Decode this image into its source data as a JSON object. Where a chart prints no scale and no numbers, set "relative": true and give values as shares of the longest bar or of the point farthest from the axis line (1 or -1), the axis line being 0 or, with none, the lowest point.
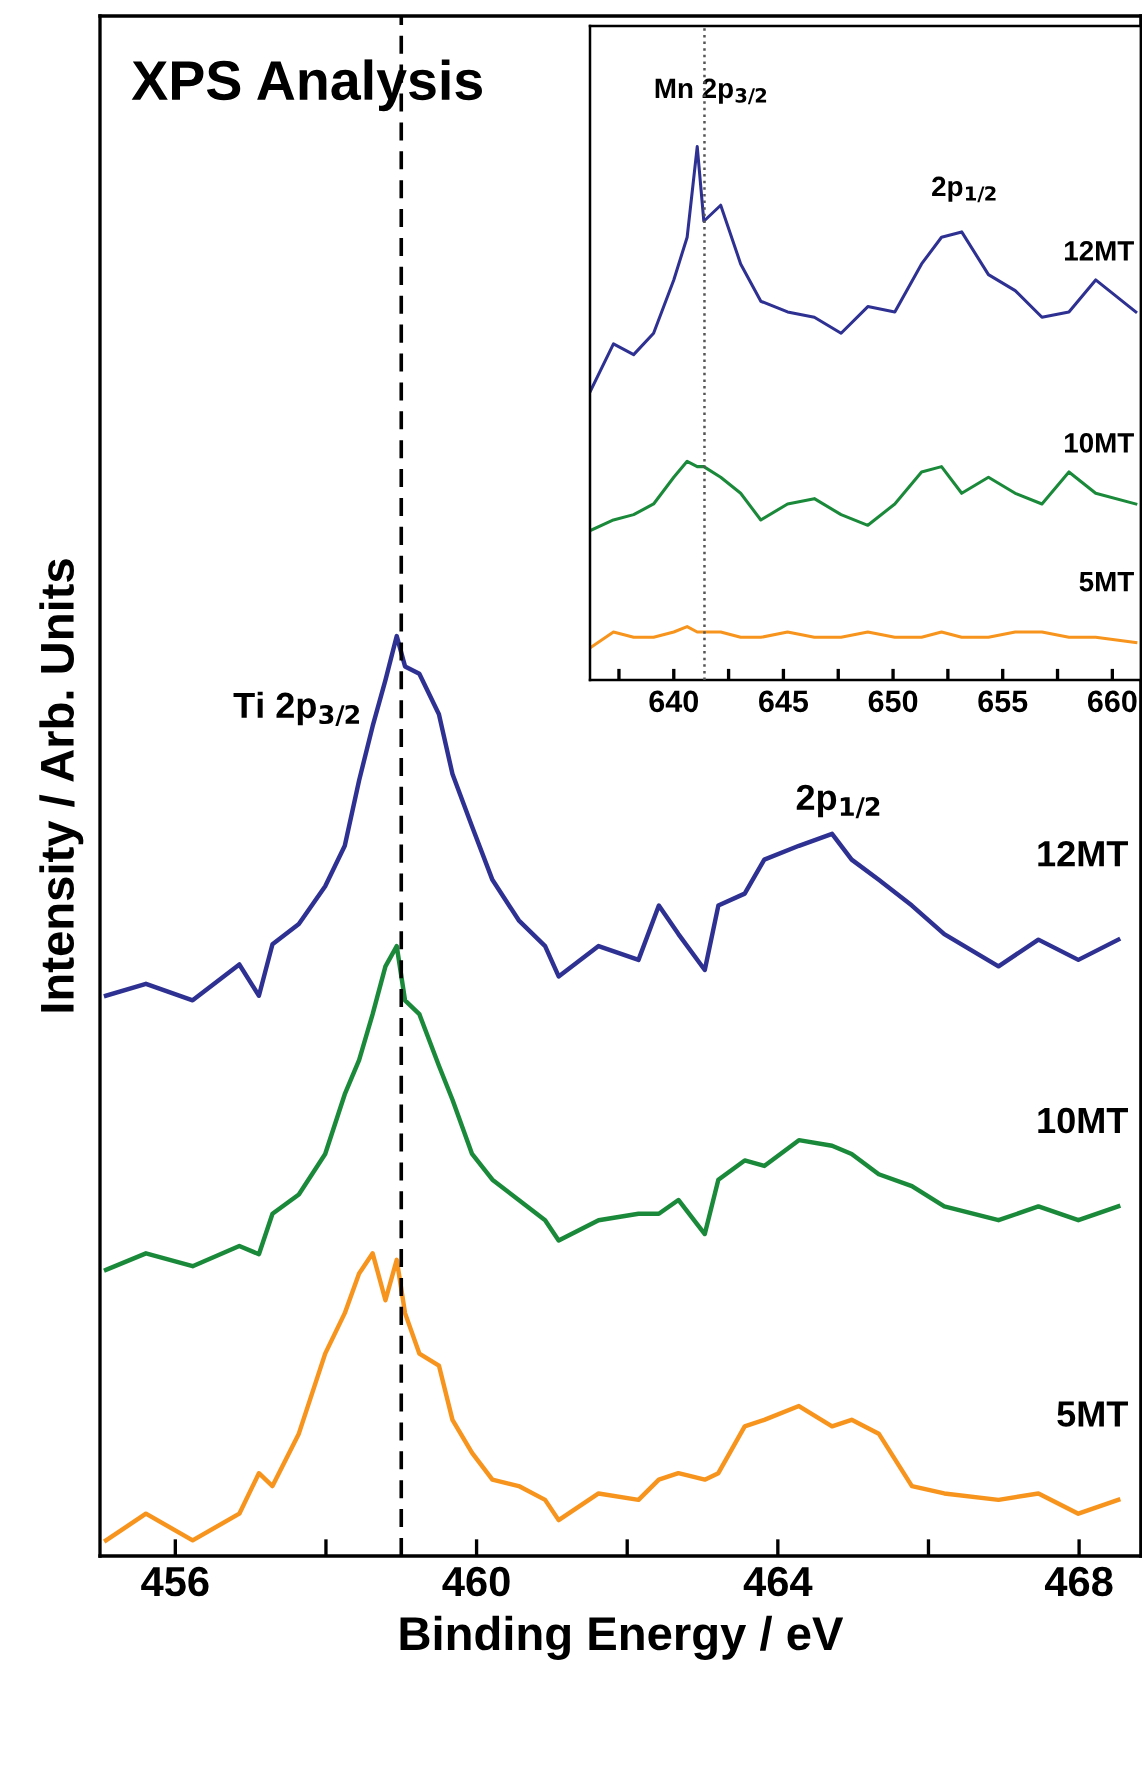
{
  "chart_data": [
    {
      "type": "line",
      "title": "XPS Analysis",
      "xlabel": "Binding Energy / eV",
      "ylabel": "Intensity / Arb. Units",
      "relative": true,
      "x": [
        455.08,
        455.61,
        456.23,
        456.85,
        457.11,
        457.29,
        457.64,
        457.99,
        458.25,
        458.44,
        458.62,
        458.79,
        458.94,
        459.05,
        459.24,
        459.5,
        459.68,
        459.94,
        460.21,
        460.56,
        460.91,
        461.09,
        461.62,
        462.15,
        462.42,
        462.68,
        463.03,
        463.21,
        463.56,
        463.82,
        464.28,
        464.72,
        464.98,
        465.34,
        465.78,
        466.21,
        466.93,
        467.46,
        467.99,
        468.52
      ],
      "series": [
        {
          "name": "12MT",
          "color": "#2e3192",
          "values": [
            0.609,
            0.622,
            0.604,
            0.643,
            0.609,
            0.665,
            0.687,
            0.728,
            0.772,
            0.843,
            0.902,
            0.952,
            1.0,
            0.967,
            0.959,
            0.915,
            0.85,
            0.793,
            0.735,
            0.691,
            0.663,
            0.63,
            0.663,
            0.648,
            0.707,
            0.676,
            0.637,
            0.707,
            0.72,
            0.757,
            0.772,
            0.785,
            0.757,
            0.735,
            0.707,
            0.676,
            0.641,
            0.67,
            0.648,
            0.67
          ]
        },
        {
          "name": "10MT",
          "color": "#1a8a3a",
          "values": [
            0.311,
            0.329,
            0.315,
            0.337,
            0.328,
            0.372,
            0.393,
            0.437,
            0.502,
            0.539,
            0.589,
            0.641,
            0.663,
            0.604,
            0.589,
            0.533,
            0.496,
            0.437,
            0.409,
            0.387,
            0.365,
            0.343,
            0.365,
            0.372,
            0.372,
            0.387,
            0.35,
            0.409,
            0.43,
            0.424,
            0.452,
            0.446,
            0.437,
            0.415,
            0.402,
            0.38,
            0.365,
            0.38,
            0.365,
            0.38
          ]
        },
        {
          "name": "5MT",
          "color": "#f7941d",
          "values": [
            0.017,
            0.046,
            0.017,
            0.046,
            0.09,
            0.076,
            0.133,
            0.22,
            0.264,
            0.307,
            0.329,
            0.278,
            0.322,
            0.264,
            0.22,
            0.207,
            0.148,
            0.112,
            0.083,
            0.076,
            0.061,
            0.039,
            0.068,
            0.061,
            0.083,
            0.09,
            0.083,
            0.09,
            0.141,
            0.148,
            0.163,
            0.141,
            0.148,
            0.133,
            0.076,
            0.068,
            0.061,
            0.068,
            0.046,
            0.061
          ]
        }
      ],
      "xlim": [
        455.0,
        468.82
      ],
      "xticks": [
        456,
        {
          "value": 458,
          "label": null
        },
        460,
        {
          "value": 462,
          "label": null
        },
        464,
        {
          "value": 466,
          "label": null
        },
        468
      ],
      "tick_labels": "x",
      "ref_lines": [
        {
          "axis": "x",
          "value": 459.0,
          "color": "#000000",
          "line_style": "dashed"
        }
      ],
      "annotations": [
        "Ti 2p$_{3/2}$",
        "2p$_{1/2}$"
      ],
      "legend": false,
      "grid": false,
      "marker": "none",
      "line_style": "solid"
    },
    {
      "type": "line",
      "relative": true,
      "x": [
        636.18,
        637.25,
        638.17,
        639.08,
        640.0,
        640.61,
        641.07,
        641.37,
        642.14,
        643.05,
        643.97,
        645.19,
        646.41,
        647.63,
        648.85,
        650.08,
        651.3,
        652.21,
        653.13,
        654.35,
        655.57,
        656.79,
        658.02,
        659.24,
        661.07
      ],
      "series": [
        {
          "name": "12MT",
          "color": "#2e3192",
          "values": [
            0.54,
            0.63,
            0.61,
            0.65,
            0.75,
            0.83,
            1.0,
            0.86,
            0.89,
            0.78,
            0.71,
            0.69,
            0.68,
            0.65,
            0.7,
            0.69,
            0.78,
            0.83,
            0.84,
            0.76,
            0.73,
            0.68,
            0.69,
            0.75,
            0.69
          ]
        },
        {
          "name": "10MT",
          "color": "#1a8a3a",
          "values": [
            0.28,
            0.3,
            0.31,
            0.33,
            0.38,
            0.41,
            0.4,
            0.4,
            0.38,
            0.35,
            0.3,
            0.33,
            0.34,
            0.31,
            0.29,
            0.33,
            0.39,
            0.4,
            0.35,
            0.38,
            0.35,
            0.33,
            0.39,
            0.35,
            0.33
          ]
        },
        {
          "name": "5MT",
          "color": "#f7941d",
          "values": [
            0.06,
            0.09,
            0.08,
            0.08,
            0.09,
            0.1,
            0.09,
            0.09,
            0.09,
            0.08,
            0.08,
            0.09,
            0.08,
            0.08,
            0.09,
            0.08,
            0.08,
            0.09,
            0.08,
            0.08,
            0.09,
            0.09,
            0.08,
            0.08,
            0.07
          ]
        }
      ],
      "xlim": [
        636.18,
        661.3
      ],
      "xticks": [
        {
          "value": 637.5,
          "label": null
        },
        640,
        {
          "value": 642.5,
          "label": null
        },
        645,
        {
          "value": 647.5,
          "label": null
        },
        650,
        {
          "value": 652.5,
          "label": null
        },
        655,
        {
          "value": 657.5,
          "label": null
        },
        660
      ],
      "tick_labels": "x",
      "ref_lines": [
        {
          "axis": "x",
          "value": 641.4,
          "color": "#555555",
          "line_style": "dotted"
        }
      ],
      "annotations": [
        "Mn 2p$_{3/2}$",
        "2p$_{1/2}$"
      ],
      "legend": false,
      "grid": false,
      "marker": "none",
      "line_style": "solid"
    }
  ]
}
